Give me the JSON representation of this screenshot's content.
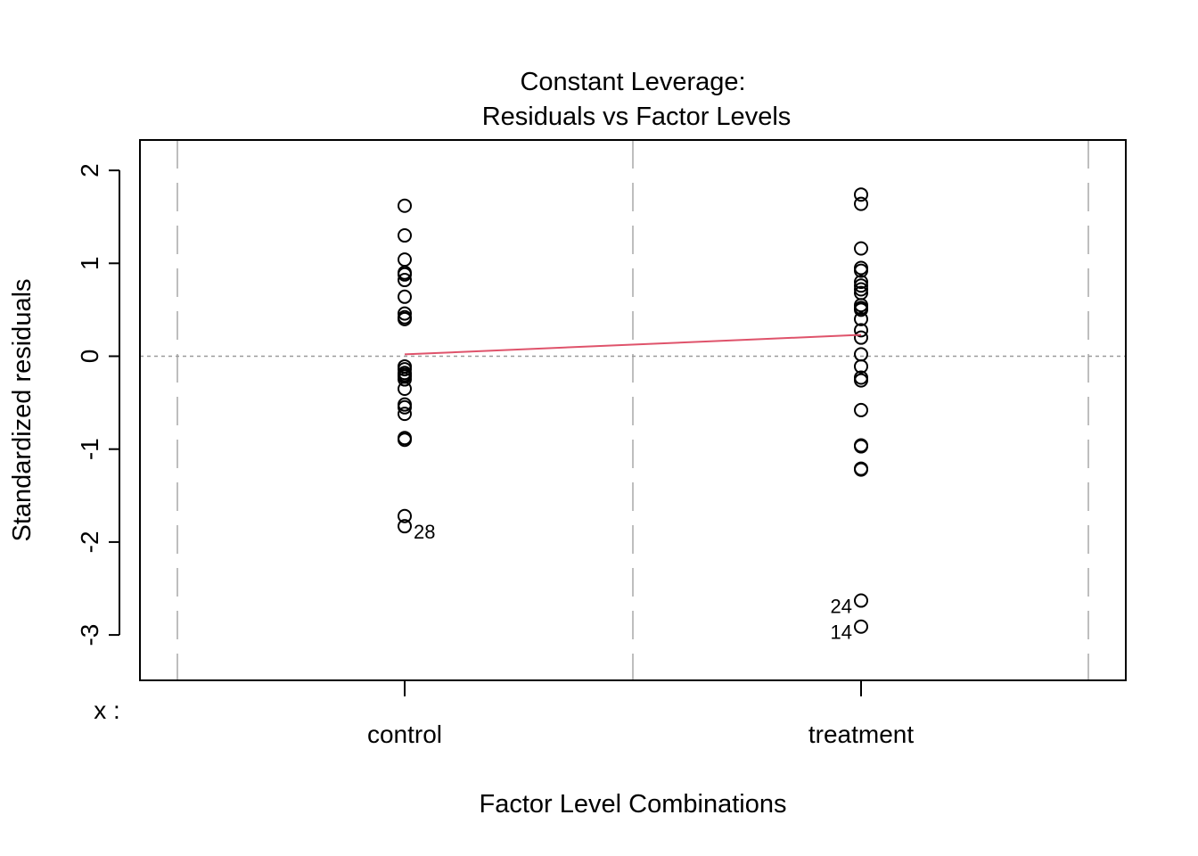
{
  "chart_data": {
    "type": "scatter",
    "title": "Constant Leverage:",
    "subtitle": "Residuals vs Factor Levels",
    "xlabel": "Factor Level Combinations",
    "ylabel": "Standardized residuals",
    "factor_prefix": "x :",
    "categories": [
      "control",
      "treatment"
    ],
    "ylim": [
      -3.5,
      2.3
    ],
    "yticks": [
      -3,
      -2,
      -1,
      0,
      1,
      2
    ],
    "grid": false,
    "series": [
      {
        "category": "control",
        "values": [
          1.62,
          1.3,
          1.04,
          0.9,
          0.88,
          0.82,
          0.64,
          0.46,
          0.42,
          0.4,
          -0.11,
          -0.14,
          -0.18,
          -0.2,
          -0.22,
          -0.25,
          -0.35,
          -0.52,
          -0.55,
          -0.62,
          -0.88,
          -0.9,
          -1.72,
          -1.83
        ]
      },
      {
        "category": "treatment",
        "values": [
          1.74,
          1.64,
          1.16,
          0.95,
          0.92,
          0.8,
          0.76,
          0.72,
          0.68,
          0.55,
          0.52,
          0.5,
          0.4,
          0.28,
          0.2,
          0.02,
          -0.11,
          -0.23,
          -0.26,
          -0.58,
          -0.96,
          -0.97,
          -1.21,
          -1.22,
          -2.63,
          -2.91
        ]
      }
    ],
    "smooth_line": {
      "color": "#DF536B",
      "values": [
        0.02,
        0.23
      ]
    },
    "annotations": [
      {
        "category": "control",
        "y": -1.83,
        "text": "28",
        "side": "right"
      },
      {
        "category": "treatment",
        "y": -2.63,
        "text": "24",
        "side": "left"
      },
      {
        "category": "treatment",
        "y": -2.91,
        "text": "14",
        "side": "left"
      }
    ],
    "colors": {
      "points": "#000000",
      "divider": "#BEBEBE",
      "zero_line": "#9A9A9A"
    }
  }
}
